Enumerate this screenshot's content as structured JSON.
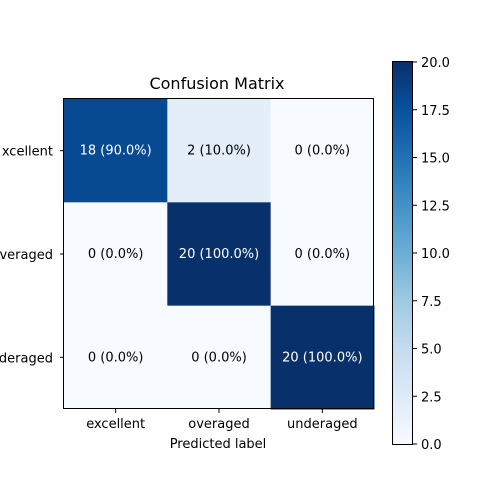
{
  "chart_data": {
    "type": "heatmap",
    "title": "Confusion Matrix",
    "xlabel": "Predicted label",
    "ylabel": "",
    "x_categories": [
      "excellent",
      "overaged",
      "underaged"
    ],
    "y_categories": [
      "excellent",
      "overaged",
      "underaged"
    ],
    "y_tick_labels_visible": [
      "xcellent",
      "veraged",
      "deraged"
    ],
    "values": [
      [
        18,
        2,
        0
      ],
      [
        0,
        20,
        0
      ],
      [
        0,
        0,
        20
      ]
    ],
    "cell_labels": [
      [
        "18 (90.0%)",
        "2 (10.0%)",
        "0 (0.0%)"
      ],
      [
        "0 (0.0%)",
        "20 (100.0%)",
        "0 (0.0%)"
      ],
      [
        "0 (0.0%)",
        "0 (0.0%)",
        "20 (100.0%)"
      ]
    ],
    "colorbar": {
      "min": 0,
      "max": 20,
      "ticks": [
        "0.0",
        "2.5",
        "5.0",
        "7.5",
        "10.0",
        "12.5",
        "15.0",
        "17.5",
        "20.0"
      ],
      "colormap": "Blues"
    }
  }
}
